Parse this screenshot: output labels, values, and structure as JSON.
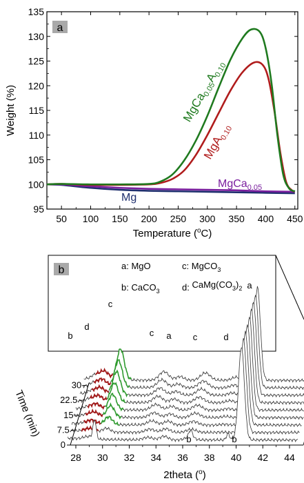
{
  "chart_data": [
    {
      "type": "line",
      "panel_label": "a",
      "xlabel": "Temperature (°C)",
      "ylabel": "Weight (%)",
      "xlim": [
        25,
        455
      ],
      "ylim": [
        95,
        135
      ],
      "xticks": [
        50,
        100,
        150,
        200,
        250,
        300,
        350,
        400,
        450
      ],
      "yticks": [
        95,
        100,
        105,
        110,
        115,
        120,
        125,
        130,
        135
      ],
      "grid": false,
      "series": [
        {
          "name": "MgCa0.05A0.10",
          "color": "#1f7a1f",
          "x": [
            25,
            50,
            100,
            150,
            200,
            220,
            240,
            260,
            280,
            300,
            320,
            340,
            360,
            375,
            390,
            400,
            410,
            420,
            430,
            440,
            450
          ],
          "y": [
            100.0,
            100.1,
            100.0,
            100.0,
            100.1,
            100.6,
            102.0,
            104.8,
            108.8,
            113.9,
            119.8,
            125.4,
            129.6,
            131.4,
            130.9,
            127.6,
            120.5,
            110.0,
            102.0,
            99.2,
            98.6
          ]
        },
        {
          "name": "MgA0.10",
          "color": "#b01c1c",
          "x": [
            25,
            50,
            100,
            150,
            200,
            220,
            240,
            260,
            280,
            300,
            320,
            340,
            360,
            380,
            395,
            405,
            415,
            425,
            435,
            445,
            450
          ],
          "y": [
            100.0,
            100.1,
            99.9,
            99.9,
            100.0,
            100.3,
            101.1,
            102.8,
            105.9,
            110.0,
            114.6,
            119.1,
            122.7,
            124.7,
            124.2,
            121.3,
            114.8,
            106.5,
            100.5,
            98.8,
            98.6
          ]
        },
        {
          "name": "MgCa0.05",
          "color": "#7a1f9e",
          "x": [
            25,
            50,
            100,
            150,
            200,
            250,
            300,
            350,
            400,
            450
          ],
          "y": [
            100.0,
            100.0,
            99.6,
            99.3,
            99.1,
            99.0,
            98.9,
            98.8,
            98.6,
            98.5
          ]
        },
        {
          "name": "Mg",
          "color": "#1f2f6e",
          "x": [
            25,
            50,
            100,
            150,
            200,
            250,
            300,
            350,
            400,
            450
          ],
          "y": [
            100.0,
            99.9,
            99.3,
            98.9,
            98.7,
            98.6,
            98.5,
            98.4,
            98.3,
            98.2
          ]
        }
      ],
      "annotations": [
        {
          "text": "MgCa",
          "sub1": "0.05",
          "mid": "A",
          "sub2": "0.10",
          "color": "#1f7a1f"
        },
        {
          "text": "MgA",
          "sub1": "0.10",
          "color": "#b01c1c"
        },
        {
          "text": "MgCa",
          "sub1": "0.05",
          "color": "#7a1f9e"
        },
        {
          "text": "Mg",
          "color": "#1f2f6e"
        }
      ]
    },
    {
      "type": "line",
      "panel_label": "b",
      "xlabel": "2theta (°)",
      "ylabel": "Time  (min)",
      "xlim": [
        27.4,
        44.6
      ],
      "xticks": [
        28,
        30,
        32,
        34,
        36,
        38,
        40,
        42,
        44
      ],
      "time_ticks": [
        "0",
        "7.5",
        "15",
        "22.5",
        "30"
      ],
      "num_patterns": 9,
      "peaks": [
        {
          "phase": "MgO",
          "letter": "a",
          "two_theta": 40.4,
          "relative_intensity": 1.0
        },
        {
          "phase": "MgCO3",
          "letter": "c",
          "two_theta": 30.0,
          "relative_intensity": 0.62
        },
        {
          "phase": "CaCO3",
          "letter": "b",
          "two_theta": 29.0,
          "relative_intensity": 0.12
        },
        {
          "phase": "CaMg(CO3)2",
          "letter": "d",
          "two_theta": 28.7,
          "relative_intensity": 0.2
        }
      ],
      "legend": [
        {
          "letter": "a:",
          "name": "MgO"
        },
        {
          "letter": "c:",
          "name": "MgCO",
          "sub": "3"
        },
        {
          "letter": "b:",
          "name": "CaCO",
          "sub": "3"
        },
        {
          "letter": "d:",
          "name": "CaMg(CO",
          "sub": "3",
          "tail": ")",
          "sub2": "2"
        }
      ],
      "peak_letters_top": [
        "b",
        "d",
        "c",
        "c",
        "a",
        "c",
        "d",
        "a"
      ],
      "peak_letters_bottom": [
        "b",
        "b"
      ],
      "colors": {
        "base": "#333333",
        "red_segment": "#a01818",
        "green_segment": "#2e9a2e"
      }
    }
  ],
  "labels": {
    "deg": "o"
  }
}
